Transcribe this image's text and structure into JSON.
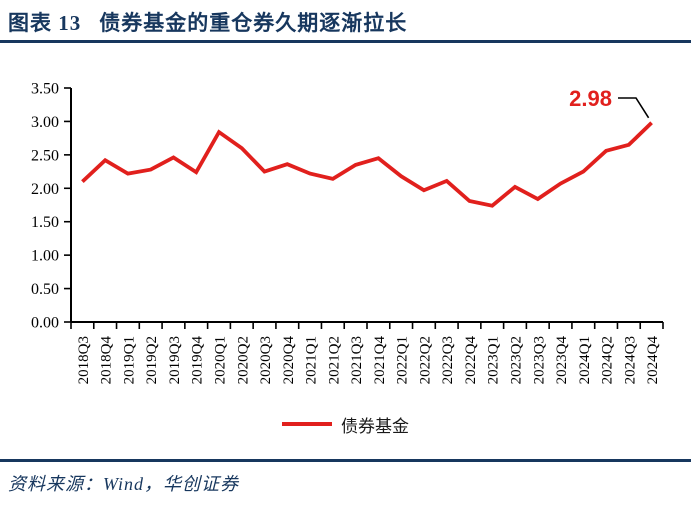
{
  "header": {
    "figure_label": "图表 13",
    "title": "债券基金的重仓券久期逐渐拉长"
  },
  "colors": {
    "navy": "#17375e",
    "series_red": "#e1201d",
    "axis_black": "#000000"
  },
  "chart_data": {
    "type": "line",
    "categories": [
      "2018Q3",
      "2018Q4",
      "2019Q1",
      "2019Q2",
      "2019Q3",
      "2019Q4",
      "2020Q1",
      "2020Q2",
      "2020Q3",
      "2020Q4",
      "2021Q1",
      "2021Q2",
      "2021Q3",
      "2021Q4",
      "2022Q1",
      "2022Q2",
      "2022Q3",
      "2022Q4",
      "2023Q1",
      "2023Q2",
      "2023Q3",
      "2023Q4",
      "2024Q1",
      "2024Q2",
      "2024Q3",
      "2024Q4"
    ],
    "series": [
      {
        "name": "债券基金",
        "color": "#e1201d",
        "values": [
          2.1,
          2.42,
          2.22,
          2.28,
          2.46,
          2.24,
          2.84,
          2.6,
          2.25,
          2.36,
          2.22,
          2.14,
          2.35,
          2.45,
          2.18,
          1.97,
          2.11,
          1.81,
          1.74,
          2.02,
          1.84,
          2.07,
          2.25,
          2.56,
          2.65,
          2.98
        ]
      }
    ],
    "ylim": [
      0,
      3.5
    ],
    "ytick_labels": [
      "0.00",
      "0.50",
      "1.00",
      "1.50",
      "2.00",
      "2.50",
      "3.00",
      "3.50"
    ],
    "grid": false,
    "legend_position": "bottom-center",
    "annotation": {
      "text": "2.98",
      "target": "last-point",
      "color": "#e1201d"
    }
  },
  "legend": {
    "items": [
      {
        "label": "债券基金",
        "color": "#e1201d"
      }
    ]
  },
  "footer": {
    "source": "资料来源：Wind，华创证券"
  }
}
